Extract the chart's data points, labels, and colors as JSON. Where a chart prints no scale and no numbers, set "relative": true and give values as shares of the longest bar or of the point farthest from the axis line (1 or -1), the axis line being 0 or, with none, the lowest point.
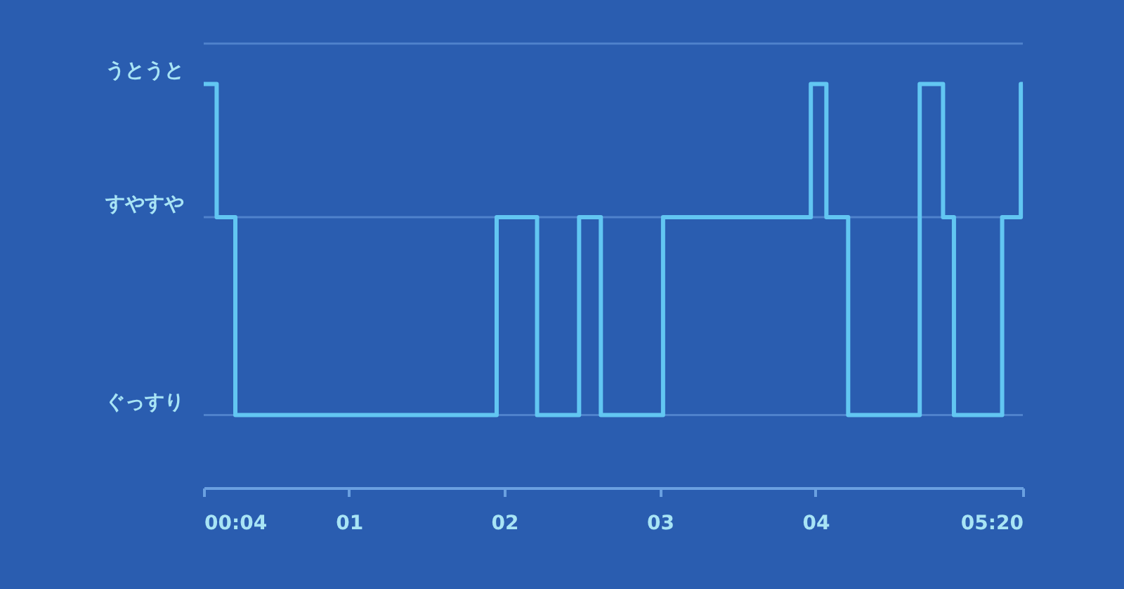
{
  "chart_data": {
    "type": "step",
    "relative": true,
    "x": [
      0.0667,
      0.15,
      0.27,
      1.95,
      2.21,
      2.48,
      2.62,
      3.02,
      3.97,
      4.07,
      4.21,
      4.67,
      4.82,
      4.89,
      5.2,
      5.32,
      5.333
    ],
    "series": [
      {
        "color": "#62c6f2",
        "values": [
          1,
          0.67,
          0.18,
          0.67,
          0.18,
          0.67,
          0.18,
          0.67,
          1,
          0.67,
          0.18,
          1,
          0.67,
          0.18,
          0.67,
          1,
          1
        ]
      }
    ],
    "xlim": [
      0.0667,
      5.333
    ],
    "xticks": [
      {
        "value": 0.0667,
        "label": "00:04"
      },
      {
        "value": 1,
        "label": "01"
      },
      {
        "value": 2,
        "label": "02"
      },
      {
        "value": 3,
        "label": "03"
      },
      {
        "value": 4,
        "label": "04"
      },
      {
        "value": 5.333,
        "label": "05:20"
      }
    ],
    "annotations": [
      "うとうと",
      "すやすや",
      "ぐっすり"
    ],
    "ref_lines": [
      {
        "axis": "y",
        "value": 0.67,
        "color": "#4f82cc"
      },
      {
        "axis": "y",
        "value": 0.18,
        "color": "#4f82cc"
      }
    ],
    "marker": "none",
    "line_style": "solid"
  }
}
